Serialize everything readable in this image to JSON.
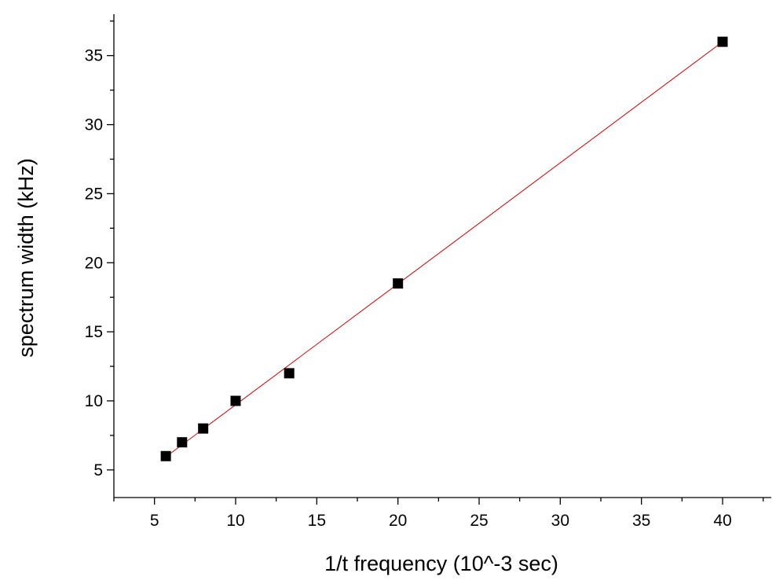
{
  "chart_data": {
    "type": "scatter",
    "xlabel": "1/t frequency (10^-3 sec)",
    "ylabel": "spectrum width (kHz)",
    "xlim": [
      2.5,
      43
    ],
    "ylim": [
      3,
      38
    ],
    "xticks": [
      5,
      10,
      15,
      20,
      25,
      30,
      35,
      40
    ],
    "yticks": [
      5,
      10,
      15,
      20,
      25,
      30,
      35
    ],
    "x_minor_step": 2.5,
    "y_minor_step": 2.5,
    "grid": false,
    "series": [
      {
        "marker": "square",
        "color": "#000000",
        "points": [
          {
            "x": 5.7,
            "y": 6
          },
          {
            "x": 6.7,
            "y": 7
          },
          {
            "x": 8.0,
            "y": 8
          },
          {
            "x": 10.0,
            "y": 10
          },
          {
            "x": 13.3,
            "y": 12
          },
          {
            "x": 20.0,
            "y": 18.5
          },
          {
            "x": 40.0,
            "y": 36
          }
        ]
      }
    ],
    "fit_line": {
      "color": "#cc0000",
      "x_range": [
        5.7,
        40.0
      ],
      "slope": 0.8763,
      "intercept": 0.9504
    }
  }
}
